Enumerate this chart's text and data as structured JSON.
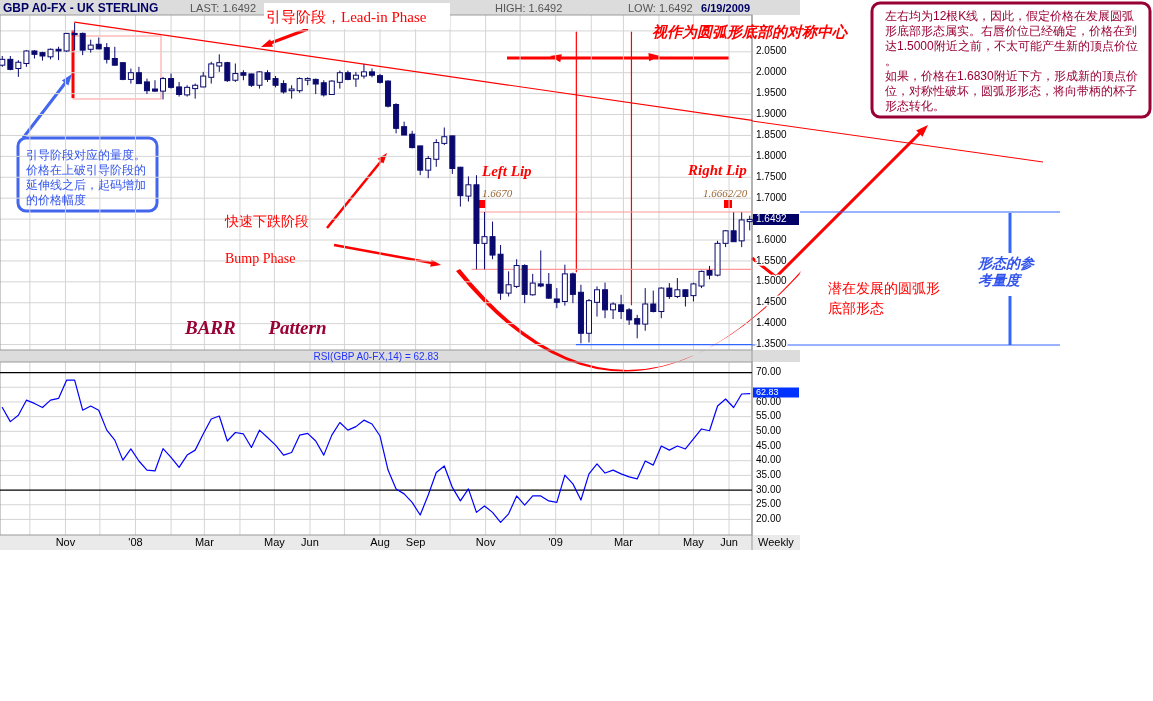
{
  "chart_data": [
    {
      "type": "candlestick",
      "title": "GBP A0-FX - UK STERLING",
      "color": "#0a0a6e",
      "x": [
        "2007-09-07",
        "2007-09-14",
        "2007-09-21",
        "2007-09-28",
        "2007-10-05",
        "2007-10-12",
        "2007-10-19",
        "2007-10-26",
        "2007-11-02",
        "2007-11-09",
        "2007-11-16",
        "2007-11-23",
        "2007-11-30",
        "2007-12-07",
        "2007-12-14",
        "2007-12-21",
        "2007-12-28",
        "2008-01-04",
        "2008-01-11",
        "2008-01-18",
        "2008-01-25",
        "2008-02-01",
        "2008-02-08",
        "2008-02-15",
        "2008-02-22",
        "2008-02-29",
        "2008-03-07",
        "2008-03-14",
        "2008-03-21",
        "2008-03-28",
        "2008-04-04",
        "2008-04-11",
        "2008-04-18",
        "2008-04-25",
        "2008-05-02",
        "2008-05-09",
        "2008-05-16",
        "2008-05-23",
        "2008-05-30",
        "2008-06-06",
        "2008-06-13",
        "2008-06-20",
        "2008-06-27",
        "2008-07-04",
        "2008-07-11",
        "2008-07-18",
        "2008-07-25",
        "2008-08-01",
        "2008-08-08",
        "2008-08-15",
        "2008-08-22",
        "2008-08-29",
        "2008-09-05",
        "2008-09-12",
        "2008-09-19",
        "2008-09-26",
        "2008-10-03",
        "2008-10-10",
        "2008-10-17",
        "2008-10-24",
        "2008-10-31",
        "2008-11-07",
        "2008-11-14",
        "2008-11-21",
        "2008-11-28",
        "2008-12-05",
        "2008-12-12",
        "2008-12-19",
        "2008-12-26",
        "2009-01-02",
        "2009-01-09",
        "2009-01-16",
        "2009-01-23",
        "2009-01-30",
        "2009-02-06",
        "2009-02-13",
        "2009-02-20",
        "2009-02-27",
        "2009-03-06",
        "2009-03-13",
        "2009-03-20",
        "2009-03-27",
        "2009-04-03",
        "2009-04-10",
        "2009-04-17",
        "2009-04-24",
        "2009-05-01",
        "2009-05-08",
        "2009-05-15",
        "2009-05-22",
        "2009-05-29",
        "2009-06-05",
        "2009-06-12",
        "2009-06-19"
      ],
      "ohlc": [
        [
          2.018,
          2.04,
          2.014,
          2.032
        ],
        [
          2.032,
          2.04,
          2.006,
          2.008
        ],
        [
          2.01,
          2.03,
          1.99,
          2.025
        ],
        [
          2.022,
          2.054,
          2.014,
          2.052
        ],
        [
          2.052,
          2.054,
          2.034,
          2.044
        ],
        [
          2.048,
          2.05,
          2.029,
          2.04
        ],
        [
          2.038,
          2.058,
          2.032,
          2.056
        ],
        [
          2.056,
          2.062,
          2.03,
          2.052
        ],
        [
          2.052,
          2.095,
          2.05,
          2.094
        ],
        [
          2.094,
          2.119,
          2.054,
          2.091
        ],
        [
          2.094,
          2.096,
          2.042,
          2.054
        ],
        [
          2.056,
          2.079,
          2.048,
          2.066
        ],
        [
          2.068,
          2.084,
          2.056,
          2.057
        ],
        [
          2.06,
          2.071,
          2.022,
          2.032
        ],
        [
          2.034,
          2.062,
          2.017,
          2.018
        ],
        [
          2.024,
          2.024,
          1.982,
          1.984
        ],
        [
          1.984,
          2.01,
          1.974,
          2.0
        ],
        [
          2.0,
          2.014,
          1.973,
          1.974
        ],
        [
          1.978,
          1.986,
          1.949,
          1.957
        ],
        [
          1.961,
          1.982,
          1.954,
          1.956
        ],
        [
          1.956,
          1.99,
          1.936,
          1.986
        ],
        [
          1.986,
          1.998,
          1.962,
          1.965
        ],
        [
          1.966,
          1.978,
          1.943,
          1.948
        ],
        [
          1.947,
          1.97,
          1.943,
          1.965
        ],
        [
          1.962,
          1.974,
          1.938,
          1.97
        ],
        [
          1.966,
          2.002,
          1.965,
          1.992
        ],
        [
          1.989,
          2.026,
          1.974,
          2.021
        ],
        [
          2.016,
          2.044,
          2.002,
          2.024
        ],
        [
          2.024,
          2.026,
          1.978,
          1.981
        ],
        [
          1.982,
          2.022,
          1.978,
          1.998
        ],
        [
          2.0,
          2.006,
          1.982,
          1.994
        ],
        [
          1.997,
          1.998,
          1.966,
          1.97
        ],
        [
          1.97,
          2.004,
          1.962,
          2.002
        ],
        [
          2.0,
          2.006,
          1.978,
          1.984
        ],
        [
          1.986,
          1.992,
          1.965,
          1.97
        ],
        [
          1.974,
          1.982,
          1.95,
          1.954
        ],
        [
          1.957,
          1.97,
          1.938,
          1.961
        ],
        [
          1.957,
          1.989,
          1.952,
          1.986
        ],
        [
          1.982,
          1.989,
          1.97,
          1.986
        ],
        [
          1.984,
          1.986,
          1.949,
          1.973
        ],
        [
          1.976,
          1.982,
          1.943,
          1.947
        ],
        [
          1.948,
          1.982,
          1.947,
          1.98
        ],
        [
          1.977,
          2.005,
          1.962,
          2.0
        ],
        [
          2.0,
          2.005,
          1.982,
          1.984
        ],
        [
          1.985,
          2.002,
          1.966,
          1.994
        ],
        [
          1.992,
          2.02,
          1.986,
          2.002
        ],
        [
          2.002,
          2.01,
          1.989,
          1.994
        ],
        [
          1.993,
          1.997,
          1.974,
          1.977
        ],
        [
          1.98,
          1.982,
          1.917,
          1.92
        ],
        [
          1.924,
          1.927,
          1.855,
          1.867
        ],
        [
          1.871,
          1.883,
          1.851,
          1.851
        ],
        [
          1.853,
          1.861,
          1.819,
          1.821
        ],
        [
          1.825,
          1.825,
          1.755,
          1.767
        ],
        [
          1.767,
          1.801,
          1.748,
          1.795
        ],
        [
          1.793,
          1.841,
          1.775,
          1.833
        ],
        [
          1.831,
          1.869,
          1.827,
          1.847
        ],
        [
          1.849,
          1.849,
          1.758,
          1.771
        ],
        [
          1.774,
          1.775,
          1.68,
          1.706
        ],
        [
          1.705,
          1.752,
          1.692,
          1.732
        ],
        [
          1.732,
          1.755,
          1.53,
          1.592
        ],
        [
          1.592,
          1.667,
          1.53,
          1.608
        ],
        [
          1.608,
          1.644,
          1.554,
          1.564
        ],
        [
          1.566,
          1.588,
          1.457,
          1.473
        ],
        [
          1.473,
          1.525,
          1.465,
          1.493
        ],
        [
          1.489,
          1.554,
          1.485,
          1.539
        ],
        [
          1.539,
          1.542,
          1.449,
          1.47
        ],
        [
          1.469,
          1.519,
          1.467,
          1.497
        ],
        [
          1.495,
          1.575,
          1.487,
          1.49
        ],
        [
          1.494,
          1.521,
          1.459,
          1.461
        ],
        [
          1.459,
          1.485,
          1.437,
          1.451
        ],
        [
          1.453,
          1.541,
          1.443,
          1.519
        ],
        [
          1.519,
          1.522,
          1.449,
          1.47
        ],
        [
          1.475,
          1.493,
          1.353,
          1.377
        ],
        [
          1.377,
          1.459,
          1.355,
          1.455
        ],
        [
          1.451,
          1.489,
          1.417,
          1.481
        ],
        [
          1.481,
          1.498,
          1.413,
          1.433
        ],
        [
          1.433,
          1.451,
          1.411,
          1.447
        ],
        [
          1.445,
          1.469,
          1.411,
          1.429
        ],
        [
          1.433,
          1.437,
          1.397,
          1.409
        ],
        [
          1.412,
          1.421,
          1.365,
          1.399
        ],
        [
          1.399,
          1.485,
          1.383,
          1.447
        ],
        [
          1.447,
          1.479,
          1.427,
          1.429
        ],
        [
          1.429,
          1.487,
          1.413,
          1.485
        ],
        [
          1.485,
          1.497,
          1.459,
          1.465
        ],
        [
          1.465,
          1.509,
          1.461,
          1.481
        ],
        [
          1.481,
          1.482,
          1.441,
          1.465
        ],
        [
          1.467,
          1.498,
          1.453,
          1.495
        ],
        [
          1.49,
          1.527,
          1.485,
          1.525
        ],
        [
          1.527,
          1.538,
          1.506,
          1.516
        ],
        [
          1.516,
          1.598,
          1.513,
          1.592
        ],
        [
          1.592,
          1.624,
          1.583,
          1.622
        ],
        [
          1.622,
          1.666,
          1.596,
          1.596
        ],
        [
          1.598,
          1.666,
          1.583,
          1.648
        ],
        [
          1.644,
          1.658,
          1.623,
          1.6492
        ]
      ],
      "xlim": [
        "2007-09-05",
        "2009-06-21"
      ],
      "ylim": [
        1.337,
        2.138
      ],
      "xticks": [
        {
          "value": "2007-10-01",
          "label": null
        },
        {
          "value": "2007-11-01",
          "label": null
        },
        {
          "value": "2007-12-01",
          "label": null
        },
        {
          "value": "2008-01-01",
          "label": null
        },
        {
          "value": "2008-02-01",
          "label": null
        },
        {
          "value": "2008-03-01",
          "label": null
        },
        {
          "value": "2008-04-01",
          "label": null
        },
        {
          "value": "2008-05-01",
          "label": null
        },
        {
          "value": "2008-06-01",
          "label": null
        },
        {
          "value": "2008-07-01",
          "label": null
        },
        {
          "value": "2008-08-01",
          "label": null
        },
        {
          "value": "2008-09-01",
          "label": null
        },
        {
          "value": "2008-10-01",
          "label": null
        },
        {
          "value": "2008-11-01",
          "label": null
        },
        {
          "value": "2008-12-01",
          "label": null
        },
        {
          "value": "2009-01-01",
          "label": null
        },
        {
          "value": "2009-02-01",
          "label": null
        },
        {
          "value": "2009-03-01",
          "label": null
        },
        {
          "value": "2009-04-01",
          "label": null
        },
        {
          "value": "2009-05-01",
          "label": null
        },
        {
          "value": "2009-06-01",
          "label": null
        }
      ],
      "yticks": [
        {
          "value": 1.35,
          "label": "1.3500"
        },
        {
          "value": 1.4,
          "label": "1.4000"
        },
        {
          "value": 1.45,
          "label": "1.4500"
        },
        {
          "value": 1.5,
          "label": "1.5000"
        },
        {
          "value": 1.55,
          "label": "1.5500"
        },
        {
          "value": 1.6,
          "label": "1.6000"
        },
        {
          "value": 1.65,
          "label": null
        },
        {
          "value": 1.7,
          "label": "1.7000"
        },
        {
          "value": 1.75,
          "label": "1.7500"
        },
        {
          "value": 1.8,
          "label": "1.8000"
        },
        {
          "value": 1.85,
          "label": "1.8500"
        },
        {
          "value": 1.9,
          "label": "1.9000"
        },
        {
          "value": 1.95,
          "label": "1.9500"
        },
        {
          "value": 2.0,
          "label": "2.0000"
        },
        {
          "value": 2.05,
          "label": "2.0500"
        },
        {
          "value": 2.1,
          "label": null
        }
      ],
      "tick_labels": "y",
      "grid": true,
      "series": [
        {
          "type": "line",
          "x": [
            "2007-11-09",
            "2009-06-21"
          ],
          "values": [
            2.121,
            1.886
          ],
          "color": "#ff0000"
        },
        {
          "type": "line",
          "x": [
            "2009-01-19",
            "2009-01-19"
          ],
          "values": [
            2.097,
            1.524
          ],
          "color": "#ff0000"
        },
        {
          "type": "line",
          "x": [
            "2009-03-08",
            "2009-03-08"
          ],
          "values": [
            2.097,
            1.445
          ],
          "color": "#ff0000"
        },
        {
          "type": "line",
          "x": [
            "2008-10-27",
            "2009-06-21"
          ],
          "values": [
            1.667,
            1.667
          ],
          "color": "#ff9999"
        },
        {
          "type": "line",
          "x": [
            "2008-10-20",
            "2009-06-21"
          ],
          "values": [
            1.53,
            1.53
          ],
          "color": "#ff9999"
        },
        {
          "type": "line",
          "x": [
            "2009-01-19",
            "2009-06-21"
          ],
          "values": [
            1.35,
            1.35
          ],
          "color": "#3366ff"
        }
      ],
      "annotations": [
        "LAST: 1.6492",
        "HIGH: 1.6492",
        "LOW: 1.6492",
        "6/19/2009",
        "引导阶段，Lead-in Phase",
        "视作为圆弧形底部的对称中心",
        "左右均为12根K线，因此，假定价格在发展圆弧形底部形态属实。右唇价位已经确定，价格在到达1.5000附近之前，不太可能产生新的顶点价位。",
        "如果，价格在1.6830附近下方，形成新的顶点价位，对称性破坏，圆弧形形态，将向带柄的杯子形态转化。",
        "引导阶段对应的量度。价格在上破引导阶段的延伸线之后，起码增加的价格幅度",
        "快速下跌阶段",
        "Bump Phase",
        "BARR Pattern",
        "Left Lip",
        "1.6670",
        "Right Lip",
        "1.6662/20",
        "潜在发展的圆弧形底部形态",
        "形态的参考量度",
        "1.6492"
      ]
    },
    {
      "type": "line",
      "title": "RSI(GBP A0-FX,14) = 62.83",
      "color": "#0000ff",
      "x": [
        "2007-09-07",
        "2007-09-14",
        "2007-09-21",
        "2007-09-28",
        "2007-10-05",
        "2007-10-12",
        "2007-10-19",
        "2007-10-26",
        "2007-11-02",
        "2007-11-09",
        "2007-11-16",
        "2007-11-23",
        "2007-11-30",
        "2007-12-07",
        "2007-12-14",
        "2007-12-21",
        "2007-12-28",
        "2008-01-04",
        "2008-01-11",
        "2008-01-18",
        "2008-01-25",
        "2008-02-01",
        "2008-02-08",
        "2008-02-15",
        "2008-02-22",
        "2008-02-29",
        "2008-03-07",
        "2008-03-14",
        "2008-03-21",
        "2008-03-28",
        "2008-04-04",
        "2008-04-11",
        "2008-04-18",
        "2008-04-25",
        "2008-05-02",
        "2008-05-09",
        "2008-05-16",
        "2008-05-23",
        "2008-05-30",
        "2008-06-06",
        "2008-06-13",
        "2008-06-20",
        "2008-06-27",
        "2008-07-04",
        "2008-07-11",
        "2008-07-18",
        "2008-07-25",
        "2008-08-01",
        "2008-08-08",
        "2008-08-15",
        "2008-08-22",
        "2008-08-29",
        "2008-09-05",
        "2008-09-12",
        "2008-09-19",
        "2008-09-26",
        "2008-10-03",
        "2008-10-10",
        "2008-10-17",
        "2008-10-24",
        "2008-10-31",
        "2008-11-07",
        "2008-11-14",
        "2008-11-21",
        "2008-11-28",
        "2008-12-05",
        "2008-12-12",
        "2008-12-19",
        "2008-12-26",
        "2009-01-02",
        "2009-01-09",
        "2009-01-16",
        "2009-01-23",
        "2009-01-30",
        "2009-02-06",
        "2009-02-13",
        "2009-02-20",
        "2009-02-27",
        "2009-03-06",
        "2009-03-13",
        "2009-03-20",
        "2009-03-27",
        "2009-04-03",
        "2009-04-10",
        "2009-04-17",
        "2009-04-24",
        "2009-05-01",
        "2009-05-08",
        "2009-05-15",
        "2009-05-22",
        "2009-05-29",
        "2009-06-05",
        "2009-06-12",
        "2009-06-19"
      ],
      "values": [
        58.1,
        53.3,
        55.5,
        60.6,
        59.5,
        58.1,
        60.6,
        61.2,
        67.4,
        67.4,
        57.2,
        58.6,
        57.2,
        50.4,
        47.0,
        40.2,
        44.0,
        39.9,
        36.8,
        36.5,
        44.1,
        41.1,
        37.7,
        41.9,
        43.6,
        49.1,
        54.2,
        55.2,
        46.7,
        49.6,
        49.1,
        44.5,
        50.4,
        47.9,
        45.3,
        41.9,
        42.8,
        48.7,
        49.3,
        46.7,
        41.9,
        48.7,
        53.0,
        50.4,
        51.6,
        53.8,
        52.5,
        48.4,
        36.8,
        30.4,
        28.7,
        25.8,
        21.5,
        28.3,
        36.0,
        38.2,
        30.9,
        26.3,
        30.4,
        22.4,
        24.6,
        22.4,
        19.0,
        21.9,
        28.0,
        24.9,
        28.0,
        28.0,
        26.3,
        25.8,
        35.1,
        32.1,
        26.6,
        35.5,
        38.9,
        35.8,
        36.8,
        35.5,
        34.5,
        33.8,
        39.9,
        38.5,
        45.0,
        43.6,
        45.0,
        44.0,
        47.4,
        50.8,
        50.2,
        58.6,
        61.0,
        58.1,
        62.7,
        62.83
      ],
      "xlim": [
        "2007-09-05",
        "2009-06-21"
      ],
      "ylim": [
        14.7,
        73.6
      ],
      "xticks": [
        {
          "value": "2007-10-01",
          "label": null
        },
        {
          "value": "2007-11-01",
          "label": "Nov"
        },
        {
          "value": "2007-12-01",
          "label": null
        },
        {
          "value": "2008-01-01",
          "label": "'08"
        },
        {
          "value": "2008-02-01",
          "label": null
        },
        {
          "value": "2008-03-01",
          "label": "Mar"
        },
        {
          "value": "2008-04-01",
          "label": null
        },
        {
          "value": "2008-05-01",
          "label": "May"
        },
        {
          "value": "2008-06-01",
          "label": "Jun"
        },
        {
          "value": "2008-07-01",
          "label": null
        },
        {
          "value": "2008-08-01",
          "label": "Aug"
        },
        {
          "value": "2008-09-01",
          "label": "Sep"
        },
        {
          "value": "2008-10-01",
          "label": null
        },
        {
          "value": "2008-11-01",
          "label": "Nov"
        },
        {
          "value": "2008-12-01",
          "label": null
        },
        {
          "value": "2009-01-01",
          "label": "'09"
        },
        {
          "value": "2009-02-01",
          "label": null
        },
        {
          "value": "2009-03-01",
          "label": "Mar"
        },
        {
          "value": "2009-04-01",
          "label": null
        },
        {
          "value": "2009-05-01",
          "label": "May"
        },
        {
          "value": "2009-06-01",
          "label": "Jun"
        }
      ],
      "yticks": [
        {
          "value": 20,
          "label": "20.00"
        },
        {
          "value": 25,
          "label": "25.00"
        },
        {
          "value": 35,
          "label": "35.00"
        },
        {
          "value": 40,
          "label": "40.00"
        },
        {
          "value": 45,
          "label": "45.00"
        },
        {
          "value": 50,
          "label": "50.00"
        },
        {
          "value": 55,
          "label": "55.00"
        },
        {
          "value": 60,
          "label": "60.00"
        },
        {
          "value": 65,
          "label": null
        }
      ],
      "grid": true,
      "ref_lines": [
        {
          "axis": "y",
          "value": 70,
          "label": "70.00",
          "color": "#000000"
        },
        {
          "axis": "y",
          "value": 30,
          "label": "30.00",
          "color": "#000000"
        }
      ],
      "annotations": [
        "62.83",
        "Weekly"
      ]
    }
  ]
}
